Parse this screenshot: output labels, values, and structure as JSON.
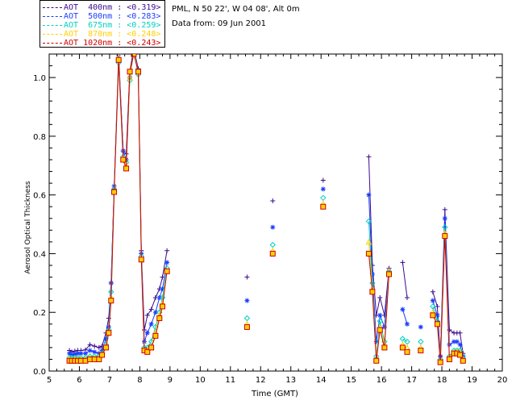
{
  "header": {
    "station": "PML, N 50 22', W 04 08', Alt 0m",
    "date": "Data from: 09 Jun 2001"
  },
  "legend": [
    {
      "label": "AOT  400nm : <0.319>",
      "color": "#3b0a8c"
    },
    {
      "label": "AOT  500nm : <0.283>",
      "color": "#1a3cff"
    },
    {
      "label": "AOT  675nm : <0.259>",
      "color": "#00d0c0"
    },
    {
      "label": "AOT  870nm : <0.248>",
      "color": "#ffd000"
    },
    {
      "label": "AOT 1020nm : <0.243>",
      "color": "#d00000"
    }
  ],
  "chart_data": {
    "type": "line",
    "title": "",
    "xlabel": "Time (GMT)",
    "ylabel": "Aerosol Optical Thickness",
    "xlim": [
      5,
      20
    ],
    "ylim": [
      0,
      1.08
    ],
    "xticks": [
      5,
      6,
      7,
      8,
      9,
      10,
      11,
      12,
      13,
      14,
      15,
      16,
      17,
      18,
      19,
      20
    ],
    "yticks": [
      0.0,
      0.2,
      0.4,
      0.6,
      0.8,
      1.0
    ],
    "ytick_labels": [
      "0.0",
      "0.2",
      "0.4",
      "0.6",
      "0.8",
      "1.0"
    ],
    "series": [
      {
        "name": "AOT  400nm : <0.319>",
        "color": "#3b0a8c",
        "marker": "plus",
        "x": [
          5.67,
          5.75,
          5.85,
          5.95,
          6.05,
          6.2,
          6.35,
          6.5,
          6.65,
          6.75,
          6.88,
          6.97,
          7.05,
          7.15,
          7.3,
          7.45,
          7.55,
          7.67,
          7.8,
          7.95,
          8.05,
          8.15,
          8.25,
          8.38,
          8.52,
          8.65,
          8.75,
          8.9,
          11.55,
          12.4,
          14.07,
          15.58,
          15.7,
          15.83,
          15.95,
          16.1,
          16.25,
          16.7,
          16.85,
          17.7,
          17.85,
          17.95,
          18.1,
          18.25,
          18.4,
          18.5,
          18.6,
          18.7
        ],
        "y": [
          0.07,
          0.065,
          0.068,
          0.07,
          0.07,
          0.072,
          0.09,
          0.085,
          0.08,
          0.085,
          0.13,
          0.18,
          0.3,
          0.62,
          1.06,
          0.75,
          0.74,
          1.02,
          1.1,
          1.03,
          0.41,
          0.14,
          0.19,
          0.21,
          0.25,
          0.28,
          0.32,
          0.41,
          0.32,
          0.58,
          0.65,
          0.73,
          0.36,
          0.19,
          0.25,
          0.19,
          0.35,
          0.37,
          0.25,
          0.27,
          0.22,
          0.05,
          0.55,
          0.14,
          0.13,
          0.13,
          0.13,
          0.06
        ]
      },
      {
        "name": "AOT  500nm : <0.283>",
        "color": "#1a3cff",
        "marker": "star",
        "x": [
          5.67,
          5.75,
          5.85,
          5.95,
          6.05,
          6.2,
          6.35,
          6.5,
          6.65,
          6.75,
          6.88,
          6.97,
          7.05,
          7.15,
          7.3,
          7.45,
          7.55,
          7.67,
          7.8,
          7.95,
          8.05,
          8.15,
          8.25,
          8.38,
          8.52,
          8.65,
          8.75,
          8.9,
          11.55,
          12.4,
          14.07,
          15.58,
          15.7,
          15.83,
          15.95,
          16.1,
          16.25,
          16.7,
          16.85,
          17.3,
          17.7,
          17.85,
          17.95,
          18.1,
          18.25,
          18.4,
          18.5,
          18.6,
          18.7
        ],
        "y": [
          0.06,
          0.055,
          0.058,
          0.06,
          0.06,
          0.06,
          0.07,
          0.065,
          0.06,
          0.07,
          0.11,
          0.15,
          0.3,
          0.63,
          1.08,
          0.75,
          0.72,
          1.0,
          1.1,
          1.02,
          0.4,
          0.1,
          0.13,
          0.16,
          0.2,
          0.25,
          0.28,
          0.37,
          0.24,
          0.49,
          0.62,
          0.6,
          0.33,
          0.1,
          0.19,
          0.15,
          0.34,
          0.21,
          0.16,
          0.15,
          0.24,
          0.19,
          0.05,
          0.52,
          0.09,
          0.1,
          0.1,
          0.09,
          0.05
        ]
      },
      {
        "name": "AOT  675nm : <0.259>",
        "color": "#00d0c0",
        "marker": "diamond",
        "x": [
          5.67,
          5.75,
          5.85,
          5.95,
          6.05,
          6.2,
          6.35,
          6.5,
          6.65,
          6.75,
          6.88,
          6.97,
          7.05,
          7.15,
          7.3,
          7.45,
          7.55,
          7.67,
          7.8,
          7.95,
          8.05,
          8.15,
          8.25,
          8.38,
          8.52,
          8.65,
          8.75,
          8.9,
          11.55,
          12.4,
          14.07,
          15.58,
          15.7,
          15.83,
          15.95,
          16.1,
          16.25,
          16.7,
          16.85,
          17.3,
          17.7,
          17.85,
          17.95,
          18.1,
          18.25,
          18.4,
          18.5,
          18.6,
          18.7
        ],
        "y": [
          0.045,
          0.045,
          0.045,
          0.045,
          0.045,
          0.045,
          0.05,
          0.05,
          0.05,
          0.06,
          0.09,
          0.14,
          0.27,
          0.62,
          1.05,
          0.73,
          0.71,
          0.99,
          1.09,
          1.01,
          0.39,
          0.08,
          0.08,
          0.1,
          0.15,
          0.2,
          0.25,
          0.35,
          0.18,
          0.43,
          0.59,
          0.51,
          0.3,
          0.05,
          0.17,
          0.1,
          0.34,
          0.11,
          0.1,
          0.1,
          0.22,
          0.17,
          0.04,
          0.49,
          0.05,
          0.07,
          0.07,
          0.07,
          0.05
        ]
      },
      {
        "name": "AOT  870nm : <0.248>",
        "color": "#ffd000",
        "marker": "triangle",
        "x": [
          5.67,
          5.75,
          5.85,
          5.95,
          6.05,
          6.2,
          6.35,
          6.5,
          6.65,
          6.75,
          6.88,
          6.97,
          7.05,
          7.15,
          7.3,
          7.45,
          7.55,
          7.67,
          7.8,
          7.95,
          8.05,
          8.15,
          8.25,
          8.38,
          8.52,
          8.65,
          8.75,
          8.9,
          11.55,
          12.4,
          14.07,
          15.58,
          15.7,
          15.83,
          15.95,
          16.1,
          16.25,
          16.7,
          16.85,
          17.3,
          17.7,
          17.85,
          17.95,
          18.1,
          18.25,
          18.4,
          18.5,
          18.6,
          18.7
        ],
        "y": [
          0.04,
          0.04,
          0.04,
          0.04,
          0.04,
          0.04,
          0.045,
          0.045,
          0.045,
          0.055,
          0.085,
          0.13,
          0.25,
          0.61,
          1.07,
          0.72,
          0.7,
          1.0,
          1.09,
          1.02,
          0.38,
          0.07,
          0.07,
          0.08,
          0.13,
          0.19,
          0.23,
          0.34,
          0.16,
          0.41,
          0.57,
          0.44,
          0.28,
          0.04,
          0.15,
          0.09,
          0.34,
          0.09,
          0.08,
          0.08,
          0.2,
          0.16,
          0.035,
          0.47,
          0.045,
          0.065,
          0.065,
          0.065,
          0.04
        ]
      },
      {
        "name": "AOT 1020nm : <0.243>",
        "color": "#d00000",
        "marker": "square",
        "x": [
          5.67,
          5.75,
          5.85,
          5.95,
          6.05,
          6.2,
          6.35,
          6.5,
          6.65,
          6.75,
          6.88,
          6.97,
          7.05,
          7.15,
          7.3,
          7.45,
          7.55,
          7.67,
          7.8,
          7.95,
          8.05,
          8.15,
          8.25,
          8.38,
          8.52,
          8.65,
          8.75,
          8.9,
          11.55,
          12.4,
          14.07,
          15.58,
          15.7,
          15.83,
          15.95,
          16.1,
          16.25,
          16.7,
          16.85,
          17.3,
          17.7,
          17.85,
          17.95,
          18.1,
          18.25,
          18.4,
          18.5,
          18.6,
          18.7
        ],
        "y": [
          0.035,
          0.035,
          0.035,
          0.035,
          0.035,
          0.035,
          0.04,
          0.04,
          0.04,
          0.055,
          0.08,
          0.13,
          0.24,
          0.61,
          1.06,
          0.72,
          0.69,
          1.02,
          1.08,
          1.02,
          0.38,
          0.07,
          0.065,
          0.08,
          0.12,
          0.18,
          0.22,
          0.34,
          0.15,
          0.4,
          0.56,
          0.4,
          0.27,
          0.035,
          0.14,
          0.08,
          0.33,
          0.08,
          0.065,
          0.07,
          0.19,
          0.16,
          0.03,
          0.46,
          0.04,
          0.06,
          0.06,
          0.055,
          0.035
        ]
      }
    ]
  }
}
